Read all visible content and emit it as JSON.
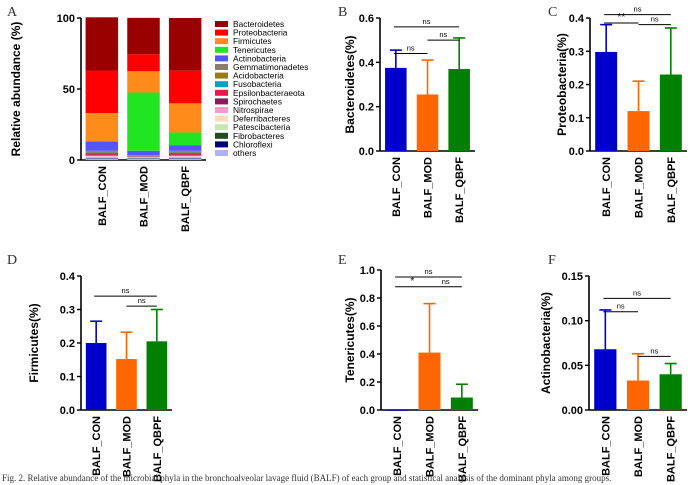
{
  "caption": "Fig. 2. Relative abundance of the microbial phyla in the bronchoalveolar lavage fluid (BALF) of each group and statistical analysis of the dominant phyla among groups.",
  "colors": {
    "blue": "#0000cc",
    "orange": "#ff6600",
    "green": "#008000",
    "stacked": {
      "Bacteroidetes": "#990000",
      "Proteobacteria": "#ff0000",
      "Firmicutes": "#ff8c1a",
      "Tenericutes": "#22e522",
      "Actinobacteria": "#5555ff",
      "Gemmatimonadetes": "#8b7d6b",
      "Acidobacteria": "#9a7b1c",
      "Fusobacteria": "#00a3c4",
      "Epsilonbacteraeota": "#e6194b",
      "Spirochaetes": "#8b1a5a",
      "Nitrospirae": "#ff99cc",
      "Deferribacteres": "#ffdab9",
      "Patescibacteria": "#c8e6b0",
      "Fibrobacteres": "#1f4e1f",
      "Chloroflexi": "#000080",
      "others": "#b0b0ff"
    }
  },
  "chart_data": [
    {
      "panel": "A",
      "type": "bar",
      "stacked": true,
      "title": "",
      "xlabel": "",
      "ylabel": "Relative abundance (%)",
      "ylim": [
        0,
        100
      ],
      "yticks": [
        "0",
        "50",
        "100"
      ],
      "categories": [
        "BALF_CON",
        "BALF_MOD",
        "BALF_QBPF"
      ],
      "series": [
        {
          "name": "others",
          "values": [
            1,
            1,
            1
          ]
        },
        {
          "name": "Chloroflexi",
          "values": [
            0.3,
            0.2,
            0.3
          ]
        },
        {
          "name": "Fibrobacteres",
          "values": [
            0.3,
            0.2,
            0.3
          ]
        },
        {
          "name": "Patescibacteria",
          "values": [
            0.5,
            0.2,
            0.5
          ]
        },
        {
          "name": "Deferribacteres",
          "values": [
            0.5,
            0.2,
            0.5
          ]
        },
        {
          "name": "Nitrospirae",
          "values": [
            0.6,
            0.2,
            0.6
          ]
        },
        {
          "name": "Spirochaetes",
          "values": [
            0.6,
            0.2,
            0.6
          ]
        },
        {
          "name": "Epsilonbacteraeota",
          "values": [
            0.8,
            0.3,
            0.8
          ]
        },
        {
          "name": "Fusobacteria",
          "values": [
            0.6,
            0.2,
            0.6
          ]
        },
        {
          "name": "Acidobacteria",
          "values": [
            0.5,
            0.3,
            0.5
          ]
        },
        {
          "name": "Gemmatimonadetes",
          "values": [
            0.8,
            0.3,
            0.8
          ]
        },
        {
          "name": "Actinobacteria",
          "values": [
            6.5,
            3.2,
            4.0
          ]
        },
        {
          "name": "Tenericutes",
          "values": [
            0,
            41,
            8.9
          ]
        },
        {
          "name": "Firmicutes",
          "values": [
            20,
            15,
            20.5
          ]
        },
        {
          "name": "Proteobacteria",
          "values": [
            30,
            12,
            23
          ]
        },
        {
          "name": "Bacteroidetes",
          "values": [
            37.5,
            25.6,
            37.1
          ]
        }
      ]
    },
    {
      "panel": "B",
      "type": "bar",
      "title": "",
      "xlabel": "",
      "ylabel": "Bacteroidetes(%)",
      "ylim": [
        0,
        0.6
      ],
      "yticks": [
        "0.0",
        "0.2",
        "0.4",
        "0.6"
      ],
      "categories": [
        "BALF_CON",
        "BALF_MOD",
        "BALF_QBPF"
      ],
      "values": [
        0.375,
        0.255,
        0.37
      ],
      "errors": [
        0.08,
        0.155,
        0.14
      ],
      "significance": [
        {
          "from": 0,
          "to": 1,
          "label": "ns",
          "level": 0.44
        },
        {
          "from": 1,
          "to": 2,
          "label": "ns",
          "level": 0.5
        },
        {
          "from": 0,
          "to": 2,
          "label": "ns",
          "level": 0.56
        }
      ]
    },
    {
      "panel": "C",
      "type": "bar",
      "title": "",
      "xlabel": "",
      "ylabel": "Proteobacteria(%)",
      "ylim": [
        0,
        0.4
      ],
      "yticks": [
        "0.0",
        "0.1",
        "0.2",
        "0.3",
        "0.4"
      ],
      "categories": [
        "BALF_CON",
        "BALF_MOD",
        "BALF_QBPF"
      ],
      "values": [
        0.298,
        0.12,
        0.23
      ],
      "errors": [
        0.082,
        0.09,
        0.14
      ],
      "significance": [
        {
          "from": 0,
          "to": 1,
          "label": "**",
          "level": 0.385
        },
        {
          "from": 1,
          "to": 2,
          "label": "ns",
          "level": 0.38
        },
        {
          "from": 0,
          "to": 2,
          "label": "ns",
          "level": 0.41
        }
      ]
    },
    {
      "panel": "D",
      "type": "bar",
      "title": "",
      "xlabel": "",
      "ylabel": "Firmicutes(%)",
      "ylim": [
        0,
        0.4
      ],
      "yticks": [
        "0.0",
        "0.1",
        "0.2",
        "0.3",
        "0.4"
      ],
      "categories": [
        "BALF_CON",
        "BALF_MOD",
        "BALF_QBPF"
      ],
      "values": [
        0.2,
        0.152,
        0.205
      ],
      "errors": [
        0.065,
        0.08,
        0.095
      ],
      "significance": [
        {
          "from": 1,
          "to": 2,
          "label": "ns",
          "level": 0.31
        },
        {
          "from": 0,
          "to": 2,
          "label": "ns",
          "level": 0.34
        }
      ]
    },
    {
      "panel": "E",
      "type": "bar",
      "title": "",
      "xlabel": "",
      "ylabel": "Tenericutes(%)",
      "ylim": [
        0,
        1.0
      ],
      "yticks": [
        "0.0",
        "0.2",
        "0.4",
        "0.6",
        "0.8",
        "1.0"
      ],
      "categories": [
        "BALF_CON",
        "BALF_MOD",
        "BALF_QBPF"
      ],
      "values": [
        0.0,
        0.41,
        0.089
      ],
      "errors": [
        0.0,
        0.35,
        0.095
      ],
      "significance": [
        {
          "from": 0,
          "to": 1,
          "label": "*",
          "level": 0.88
        },
        {
          "from": 1,
          "to": 2,
          "label": "ns",
          "level": 0.88
        },
        {
          "from": 0,
          "to": 2,
          "label": "ns",
          "level": 0.95
        }
      ]
    },
    {
      "panel": "F",
      "type": "bar",
      "title": "",
      "xlabel": "",
      "ylabel": "Actinobacteria(%)",
      "ylim": [
        0,
        0.15
      ],
      "yticks": [
        "0.00",
        "0.05",
        "0.10",
        "0.15"
      ],
      "categories": [
        "BALF_CON",
        "BALF_MOD",
        "BALF_QBPF"
      ],
      "values": [
        0.068,
        0.033,
        0.04
      ],
      "errors": [
        0.044,
        0.03,
        0.012
      ],
      "significance": [
        {
          "from": 0,
          "to": 1,
          "label": "ns",
          "level": 0.11
        },
        {
          "from": 1,
          "to": 2,
          "label": "ns",
          "level": 0.06
        },
        {
          "from": 0,
          "to": 2,
          "label": "ns",
          "level": 0.125
        }
      ]
    }
  ]
}
